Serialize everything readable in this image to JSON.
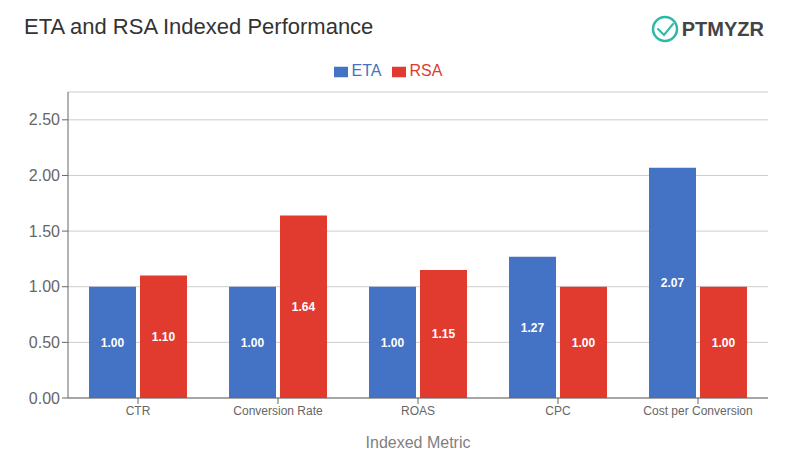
{
  "chart_data": {
    "type": "bar",
    "title": "ETA and RSA Indexed Performance",
    "xlabel": "Indexed Metric",
    "categories": [
      "CTR",
      "Conversion Rate",
      "ROAS",
      "CPC",
      "Cost per Conversion"
    ],
    "series": [
      {
        "name": "ETA",
        "color": "#4472C4",
        "values": [
          1.0,
          1.0,
          1.0,
          1.27,
          2.07
        ],
        "value_labels": [
          "1.00",
          "1.00",
          "1.00",
          "1.27",
          "2.07"
        ]
      },
      {
        "name": "RSA",
        "color": "#E03B2E",
        "values": [
          1.1,
          1.64,
          1.15,
          1.0,
          1.0
        ],
        "value_labels": [
          "1.10",
          "1.64",
          "1.15",
          "1.00",
          "1.00"
        ]
      }
    ],
    "ylim": [
      0,
      2.75
    ],
    "yticks": [
      {
        "value": 0,
        "label": "0.00"
      },
      {
        "value": 0.5,
        "label": "0.50"
      },
      {
        "value": 1,
        "label": "1.00"
      },
      {
        "value": 1.5,
        "label": "1.50"
      },
      {
        "value": 2,
        "label": "2.00"
      },
      {
        "value": 2.5,
        "label": "2.50"
      }
    ],
    "grid": true,
    "legend": "top",
    "data_labels": true,
    "annotations": [
      "PTMYZR"
    ]
  }
}
